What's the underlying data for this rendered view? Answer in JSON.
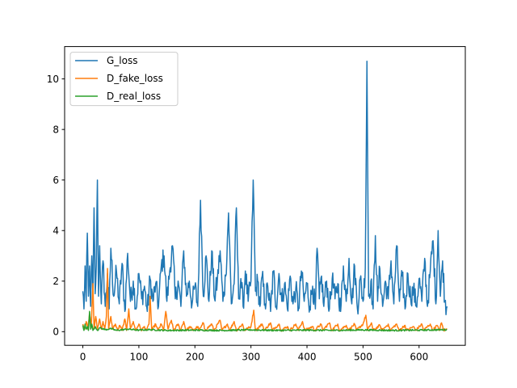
{
  "chart_data": {
    "type": "line",
    "title": "",
    "xlabel": "",
    "ylabel": "",
    "xlim": [
      -32.5,
      682.5
    ],
    "ylim": [
      -0.54,
      11.28
    ],
    "xticks": [
      0,
      100,
      200,
      300,
      400,
      500,
      600
    ],
    "yticks": [
      0,
      2,
      4,
      6,
      8,
      10
    ],
    "grid": false,
    "legend_position": "top-left",
    "colors": {
      "G_loss": "#1f77b4",
      "D_fake_loss": "#ff7f0e",
      "D_real_loss": "#2ca02c"
    },
    "series_x_range": [
      0,
      650
    ],
    "series": [
      {
        "name": "G_loss",
        "key": "G_loss",
        "keypoints": [
          [
            0,
            1.6
          ],
          [
            2,
            0.9
          ],
          [
            4,
            2.6
          ],
          [
            6,
            1.2
          ],
          [
            8,
            3.9
          ],
          [
            10,
            1.4
          ],
          [
            12,
            2.6
          ],
          [
            14,
            1.0
          ],
          [
            16,
            3.0
          ],
          [
            18,
            1.2
          ],
          [
            20,
            4.9
          ],
          [
            22,
            1.5
          ],
          [
            24,
            2.6
          ],
          [
            26,
            6.0
          ],
          [
            28,
            1.4
          ],
          [
            30,
            3.4
          ],
          [
            33,
            1.1
          ],
          [
            36,
            2.8
          ],
          [
            40,
            1.0
          ],
          [
            44,
            2.3
          ],
          [
            47,
            0.9
          ],
          [
            50,
            3.3
          ],
          [
            55,
            1.4
          ],
          [
            60,
            2.4
          ],
          [
            65,
            1.1
          ],
          [
            70,
            2.7
          ],
          [
            75,
            0.8
          ],
          [
            80,
            3.1
          ],
          [
            85,
            1.2
          ],
          [
            90,
            2.0
          ],
          [
            95,
            0.9
          ],
          [
            100,
            2.3
          ],
          [
            105,
            1.3
          ],
          [
            110,
            1.8
          ],
          [
            115,
            0.8
          ],
          [
            120,
            2.1
          ],
          [
            125,
            1.2
          ],
          [
            130,
            1.9
          ],
          [
            135,
            1.0
          ],
          [
            140,
            2.6
          ],
          [
            145,
            3.0
          ],
          [
            150,
            1.2
          ],
          [
            155,
            2.4
          ],
          [
            160,
            3.4
          ],
          [
            165,
            1.3
          ],
          [
            170,
            2.0
          ],
          [
            175,
            1.0
          ],
          [
            180,
            3.2
          ],
          [
            185,
            1.4
          ],
          [
            190,
            2.0
          ],
          [
            195,
            1.1
          ],
          [
            200,
            1.8
          ],
          [
            205,
            1.0
          ],
          [
            210,
            5.2
          ],
          [
            215,
            1.4
          ],
          [
            220,
            3.0
          ],
          [
            225,
            1.2
          ],
          [
            230,
            3.2
          ],
          [
            235,
            1.3
          ],
          [
            240,
            2.0
          ],
          [
            245,
            3.2
          ],
          [
            250,
            1.2
          ],
          [
            255,
            2.2
          ],
          [
            260,
            4.7
          ],
          [
            265,
            1.1
          ],
          [
            270,
            1.9
          ],
          [
            274,
            4.9
          ],
          [
            278,
            1.3
          ],
          [
            282,
            2.1
          ],
          [
            286,
            1.0
          ],
          [
            290,
            2.4
          ],
          [
            295,
            1.2
          ],
          [
            300,
            2.0
          ],
          [
            304,
            6.0
          ],
          [
            308,
            1.6
          ],
          [
            312,
            2.0
          ],
          [
            316,
            1.0
          ],
          [
            320,
            2.2
          ],
          [
            325,
            1.1
          ],
          [
            330,
            1.8
          ],
          [
            335,
            0.8
          ],
          [
            340,
            2.4
          ],
          [
            345,
            1.0
          ],
          [
            350,
            2.3
          ],
          [
            355,
            1.2
          ],
          [
            360,
            1.9
          ],
          [
            365,
            0.9
          ],
          [
            370,
            2.2
          ],
          [
            375,
            1.1
          ],
          [
            380,
            1.7
          ],
          [
            385,
            0.9
          ],
          [
            390,
            2.4
          ],
          [
            395,
            1.2
          ],
          [
            400,
            1.9
          ],
          [
            405,
            1.0
          ],
          [
            410,
            1.8
          ],
          [
            415,
            0.9
          ],
          [
            418,
            3.3
          ],
          [
            422,
            1.3
          ],
          [
            426,
            2.2
          ],
          [
            430,
            1.0
          ],
          [
            435,
            2.0
          ],
          [
            440,
            0.9
          ],
          [
            445,
            2.1
          ],
          [
            450,
            1.3
          ],
          [
            455,
            1.9
          ],
          [
            460,
            0.8
          ],
          [
            465,
            2.6
          ],
          [
            470,
            1.2
          ],
          [
            475,
            2.9
          ],
          [
            480,
            1.1
          ],
          [
            485,
            2.6
          ],
          [
            490,
            0.9
          ],
          [
            495,
            2.1
          ],
          [
            500,
            1.2
          ],
          [
            504,
            2.5
          ],
          [
            507,
            10.7
          ],
          [
            510,
            1.4
          ],
          [
            514,
            2.0
          ],
          [
            518,
            0.9
          ],
          [
            522,
            3.8
          ],
          [
            526,
            1.2
          ],
          [
            530,
            2.5
          ],
          [
            535,
            1.0
          ],
          [
            540,
            2.0
          ],
          [
            545,
            1.3
          ],
          [
            550,
            2.8
          ],
          [
            555,
            1.1
          ],
          [
            560,
            3.4
          ],
          [
            565,
            1.2
          ],
          [
            570,
            2.2
          ],
          [
            575,
            0.9
          ],
          [
            580,
            2.3
          ],
          [
            585,
            1.3
          ],
          [
            590,
            1.7
          ],
          [
            595,
            1.0
          ],
          [
            600,
            2.1
          ],
          [
            605,
            1.2
          ],
          [
            610,
            2.9
          ],
          [
            615,
            1.0
          ],
          [
            620,
            2.4
          ],
          [
            625,
            3.6
          ],
          [
            630,
            1.1
          ],
          [
            634,
            4.0
          ],
          [
            638,
            1.4
          ],
          [
            642,
            2.8
          ],
          [
            646,
            1.2
          ],
          [
            650,
            1.0
          ]
        ]
      },
      {
        "name": "D_fake_loss",
        "key": "D_fake_loss",
        "keypoints": [
          [
            0,
            0.3
          ],
          [
            3,
            0.1
          ],
          [
            6,
            0.4
          ],
          [
            9,
            0.1
          ],
          [
            12,
            0.7
          ],
          [
            15,
            0.15
          ],
          [
            18,
            1.9
          ],
          [
            20,
            0.1
          ],
          [
            23,
            0.6
          ],
          [
            26,
            0.1
          ],
          [
            30,
            0.5
          ],
          [
            33,
            0.1
          ],
          [
            36,
            0.4
          ],
          [
            39,
            0.1
          ],
          [
            42,
            0.6
          ],
          [
            44,
            2.5
          ],
          [
            46,
            0.1
          ],
          [
            50,
            0.6
          ],
          [
            53,
            0.1
          ],
          [
            58,
            0.3
          ],
          [
            62,
            0.05
          ],
          [
            66,
            0.25
          ],
          [
            70,
            0.05
          ],
          [
            75,
            0.5
          ],
          [
            78,
            0.05
          ],
          [
            82,
            0.9
          ],
          [
            85,
            0.1
          ],
          [
            90,
            0.4
          ],
          [
            94,
            0.05
          ],
          [
            100,
            0.3
          ],
          [
            104,
            0.05
          ],
          [
            110,
            0.2
          ],
          [
            114,
            0.05
          ],
          [
            118,
            0.3
          ],
          [
            120,
            1.4
          ],
          [
            123,
            0.05
          ],
          [
            130,
            0.3
          ],
          [
            134,
            0.05
          ],
          [
            140,
            0.3
          ],
          [
            144,
            0.05
          ],
          [
            148,
            0.8
          ],
          [
            152,
            0.1
          ],
          [
            158,
            0.45
          ],
          [
            162,
            0.05
          ],
          [
            170,
            0.3
          ],
          [
            174,
            0.05
          ],
          [
            180,
            0.4
          ],
          [
            184,
            0.05
          ],
          [
            192,
            0.2
          ],
          [
            196,
            0.05
          ],
          [
            205,
            0.2
          ],
          [
            208,
            0.05
          ],
          [
            215,
            0.35
          ],
          [
            218,
            0.05
          ],
          [
            230,
            0.3
          ],
          [
            234,
            0.05
          ],
          [
            245,
            0.45
          ],
          [
            248,
            0.05
          ],
          [
            258,
            0.3
          ],
          [
            262,
            0.05
          ],
          [
            270,
            0.4
          ],
          [
            274,
            0.05
          ],
          [
            285,
            0.3
          ],
          [
            288,
            0.05
          ],
          [
            300,
            0.2
          ],
          [
            305,
            0.85
          ],
          [
            308,
            0.05
          ],
          [
            320,
            0.3
          ],
          [
            324,
            0.05
          ],
          [
            335,
            0.35
          ],
          [
            338,
            0.05
          ],
          [
            350,
            0.3
          ],
          [
            354,
            0.05
          ],
          [
            365,
            0.2
          ],
          [
            369,
            0.05
          ],
          [
            380,
            0.3
          ],
          [
            384,
            0.05
          ],
          [
            392,
            0.4
          ],
          [
            396,
            0.05
          ],
          [
            410,
            0.2
          ],
          [
            414,
            0.05
          ],
          [
            425,
            0.3
          ],
          [
            428,
            0.05
          ],
          [
            440,
            0.35
          ],
          [
            444,
            0.05
          ],
          [
            455,
            0.3
          ],
          [
            458,
            0.05
          ],
          [
            470,
            0.25
          ],
          [
            474,
            0.05
          ],
          [
            485,
            0.3
          ],
          [
            488,
            0.05
          ],
          [
            500,
            0.3
          ],
          [
            505,
            0.65
          ],
          [
            508,
            0.05
          ],
          [
            515,
            0.35
          ],
          [
            518,
            0.05
          ],
          [
            530,
            0.25
          ],
          [
            534,
            0.05
          ],
          [
            545,
            0.3
          ],
          [
            548,
            0.05
          ],
          [
            560,
            0.3
          ],
          [
            564,
            0.05
          ],
          [
            575,
            0.25
          ],
          [
            578,
            0.05
          ],
          [
            590,
            0.2
          ],
          [
            594,
            0.05
          ],
          [
            605,
            0.3
          ],
          [
            608,
            0.05
          ],
          [
            620,
            0.3
          ],
          [
            624,
            0.05
          ],
          [
            632,
            0.25
          ],
          [
            636,
            0.05
          ],
          [
            640,
            0.35
          ],
          [
            644,
            0.05
          ],
          [
            650,
            0.1
          ]
        ]
      },
      {
        "name": "D_real_loss",
        "key": "D_real_loss",
        "keypoints": [
          [
            0,
            0.25
          ],
          [
            2,
            0.05
          ],
          [
            4,
            0.3
          ],
          [
            6,
            0.1
          ],
          [
            8,
            0.2
          ],
          [
            10,
            0.05
          ],
          [
            12,
            0.8
          ],
          [
            14,
            0.1
          ],
          [
            16,
            0.3
          ],
          [
            18,
            0.05
          ],
          [
            22,
            0.2
          ],
          [
            26,
            0.05
          ],
          [
            30,
            0.15
          ],
          [
            40,
            0.08
          ],
          [
            50,
            0.12
          ],
          [
            60,
            0.05
          ],
          [
            80,
            0.1
          ],
          [
            100,
            0.06
          ],
          [
            120,
            0.08
          ],
          [
            150,
            0.05
          ],
          [
            200,
            0.06
          ],
          [
            250,
            0.05
          ],
          [
            300,
            0.07
          ],
          [
            350,
            0.05
          ],
          [
            400,
            0.06
          ],
          [
            450,
            0.05
          ],
          [
            500,
            0.07
          ],
          [
            550,
            0.05
          ],
          [
            600,
            0.06
          ],
          [
            650,
            0.08
          ]
        ]
      }
    ]
  }
}
